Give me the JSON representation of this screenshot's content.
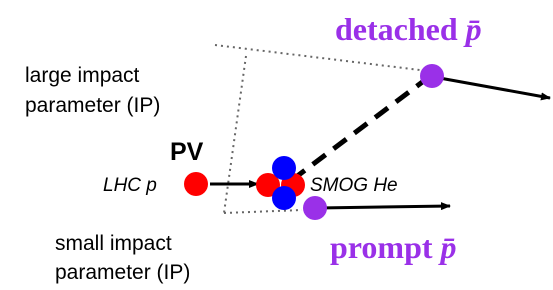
{
  "labels": {
    "detached": "detached",
    "detached_symbol": "p̄",
    "large_ip": [
      "large impact",
      "parameter (IP)"
    ],
    "pv": "PV",
    "lhc_p": "LHC p",
    "smog_he": "SMOG He",
    "small_ip": [
      "small impact",
      "parameter (IP)"
    ],
    "prompt": "prompt",
    "prompt_symbol": "p̄"
  }
}
